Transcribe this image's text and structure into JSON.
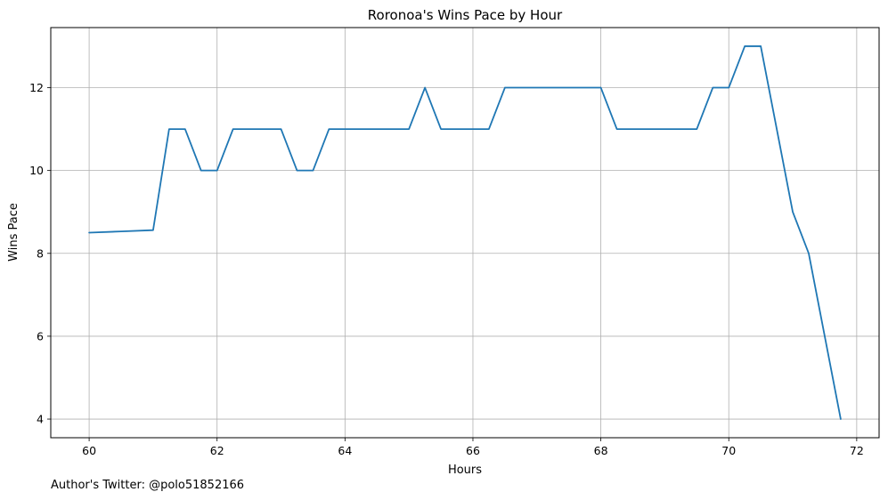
{
  "chart_data": {
    "type": "line",
    "title": "Roronoa's Wins Pace by Hour",
    "xlabel": "Hours",
    "ylabel": "Wins Pace",
    "xlim": [
      59.4,
      72.35
    ],
    "ylim": [
      3.55,
      13.45
    ],
    "xticks": [
      60,
      62,
      64,
      66,
      68,
      70,
      72
    ],
    "yticks": [
      4,
      6,
      8,
      10,
      12
    ],
    "grid": true,
    "series": [
      {
        "color": "#1f77b4",
        "x": [
          60,
          60.5,
          61,
          61.25,
          61.5,
          61.75,
          62,
          62.25,
          62.5,
          62.75,
          63,
          63.25,
          63.5,
          63.75,
          64,
          64.25,
          64.5,
          64.75,
          65,
          65.25,
          65.5,
          65.75,
          66,
          66.25,
          66.5,
          66.75,
          67,
          67.25,
          67.5,
          67.75,
          68,
          68.25,
          68.5,
          68.75,
          69,
          69.25,
          69.5,
          69.75,
          70,
          70.25,
          70.5,
          70.75,
          71,
          71.25,
          71.5,
          71.75
        ],
        "y": [
          8.5,
          8.53,
          8.56,
          11,
          11,
          10,
          10,
          11,
          11,
          11,
          11,
          10,
          10,
          11,
          11,
          11,
          11,
          11,
          11,
          12,
          11,
          11,
          11,
          11,
          12,
          12,
          12,
          12,
          12,
          12,
          12,
          11,
          11,
          11,
          11,
          11,
          11,
          12,
          12,
          13,
          13,
          11,
          9,
          8,
          6,
          4
        ]
      }
    ]
  },
  "footer": {
    "credit": "Author's Twitter: @polo51852166"
  }
}
